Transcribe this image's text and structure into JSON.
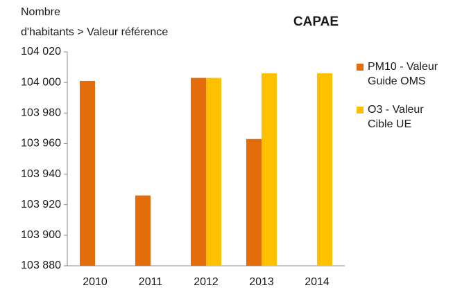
{
  "chart_data": {
    "type": "bar",
    "title": "CAPAE",
    "y_label": [
      "Nombre",
      "d'habitants > Valeur référence"
    ],
    "categories": [
      "2010",
      "2011",
      "2012",
      "2013",
      "2014"
    ],
    "series": [
      {
        "name": "PM10 - Valeur Guide OMS",
        "color": "#e46c0a",
        "values": [
          104001,
          103926,
          104003,
          103963,
          null
        ]
      },
      {
        "name": "O3 - Valeur Cible UE",
        "color": "#ffc000",
        "values": [
          null,
          null,
          104003,
          104006,
          104006
        ]
      }
    ],
    "ylim": [
      103880,
      104020
    ],
    "yticks": [
      {
        "value": 103880,
        "label": "103 880"
      },
      {
        "value": 103900,
        "label": "103 900"
      },
      {
        "value": 103920,
        "label": "103 920"
      },
      {
        "value": 103940,
        "label": "103 940"
      },
      {
        "value": 103960,
        "label": "103 960"
      },
      {
        "value": 103980,
        "label": "103 980"
      },
      {
        "value": 104000,
        "label": "104 000"
      },
      {
        "value": 104020,
        "label": "104 020"
      }
    ],
    "grid": false
  }
}
